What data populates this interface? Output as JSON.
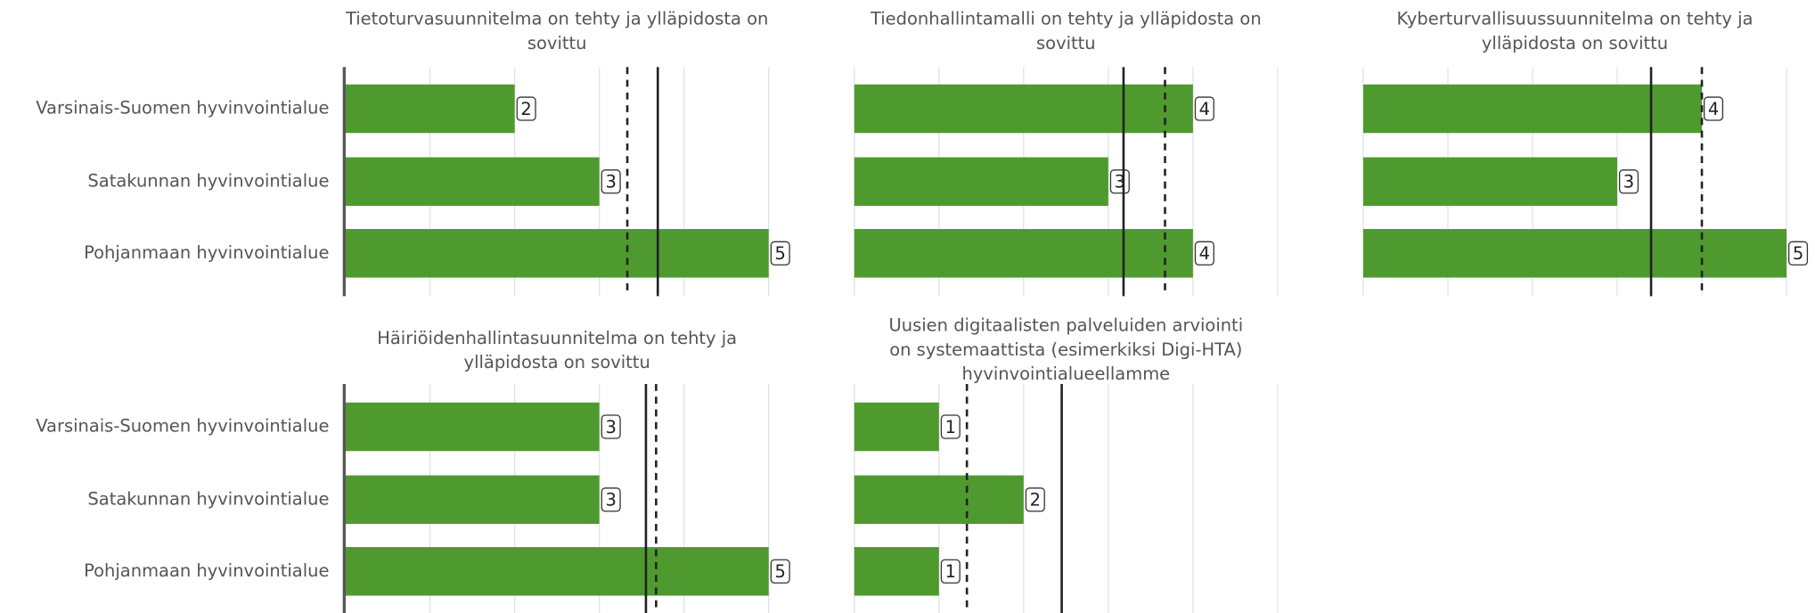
{
  "categories": [
    "Varsinais-Suomen hyvinvointialue",
    "Satakunnan hyvinvointialue",
    "Pohjanmaan hyvinvointialue"
  ],
  "chart_data": [
    {
      "type": "bar",
      "title": [
        "Tietoturvasuunnitelma on tehty ja ylläpidosta on",
        "sovittu"
      ],
      "values": [
        2,
        3,
        5
      ],
      "color": "#4f9a2f",
      "xlim": [
        0,
        5
      ],
      "xticks": [
        0,
        1,
        2,
        3,
        4,
        5
      ],
      "grid": true,
      "reference_lines": {
        "dashed": 3.33,
        "solid": 3.69
      }
    },
    {
      "type": "bar",
      "title": [
        "Tiedonhallintamalli on tehty ja ylläpidosta on",
        "sovittu"
      ],
      "values": [
        4,
        3,
        4
      ],
      "color": "#4f9a2f",
      "xlim": [
        0,
        5
      ],
      "xticks": [
        0,
        1,
        2,
        3,
        4,
        5
      ],
      "grid": true,
      "reference_lines": {
        "dashed": 3.67,
        "solid": 3.18
      }
    },
    {
      "type": "bar",
      "title": [
        "Kyberturvallisuussuunnitelma on tehty ja",
        "ylläpidosta on sovittu"
      ],
      "values": [
        4,
        3,
        5
      ],
      "color": "#4f9a2f",
      "xlim": [
        0,
        5
      ],
      "xticks": [
        0,
        1,
        2,
        3,
        4,
        5
      ],
      "grid": true,
      "reference_lines": {
        "dashed": 4.0,
        "solid": 3.4
      }
    },
    {
      "type": "bar",
      "title": [
        "Häiriöidenhallintasuunnitelma on tehty ja",
        "ylläpidosta on sovittu"
      ],
      "values": [
        3,
        3,
        5
      ],
      "color": "#4f9a2f",
      "xlim": [
        0,
        5
      ],
      "xticks": [
        0,
        1,
        2,
        3,
        4,
        5
      ],
      "grid": true,
      "reference_lines": {
        "dashed": 3.67,
        "solid": 3.55
      }
    },
    {
      "type": "bar",
      "title": [
        "Uusien digitaalisten palveluiden arviointi",
        "on systemaattista (esimerkiksi Digi-HTA)",
        "hyvinvointialueellamme"
      ],
      "values": [
        1,
        2,
        1
      ],
      "color": "#4f9a2f",
      "xlim": [
        0,
        5
      ],
      "xticks": [
        0,
        1,
        2,
        3,
        4,
        5
      ],
      "grid": true,
      "reference_lines": {
        "dashed": 1.33,
        "solid": 2.45
      }
    }
  ]
}
